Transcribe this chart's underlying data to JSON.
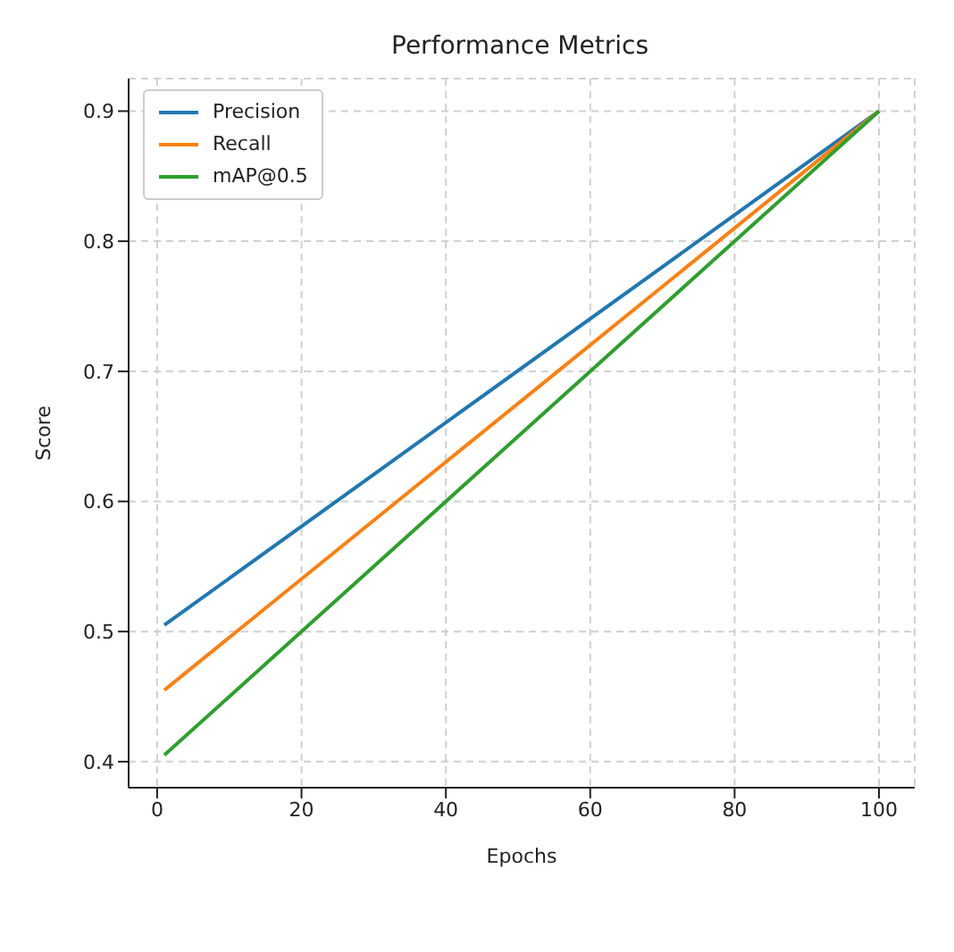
{
  "chart_data": {
    "type": "line",
    "title": "Performance Metrics",
    "xlabel": "Epochs",
    "ylabel": "Score",
    "xlim": [
      -3.95,
      104.95
    ],
    "ylim": [
      0.38,
      0.925
    ],
    "xticks": [
      0,
      20,
      40,
      60,
      80,
      100
    ],
    "yticks": [
      0.4,
      0.5,
      0.6,
      0.7,
      0.8,
      0.9
    ],
    "grid": true,
    "legend": "top left",
    "line_style": "solid",
    "x": [
      1,
      100
    ],
    "series": [
      {
        "name": "Precision",
        "color": "#1f77b4",
        "values": [
          0.505,
          0.9
        ]
      },
      {
        "name": "Recall",
        "color": "#ff7f0e",
        "values": [
          0.455,
          0.9
        ]
      },
      {
        "name": "mAP@0.5",
        "color": "#2ca02c",
        "values": [
          0.405,
          0.9
        ]
      }
    ]
  }
}
